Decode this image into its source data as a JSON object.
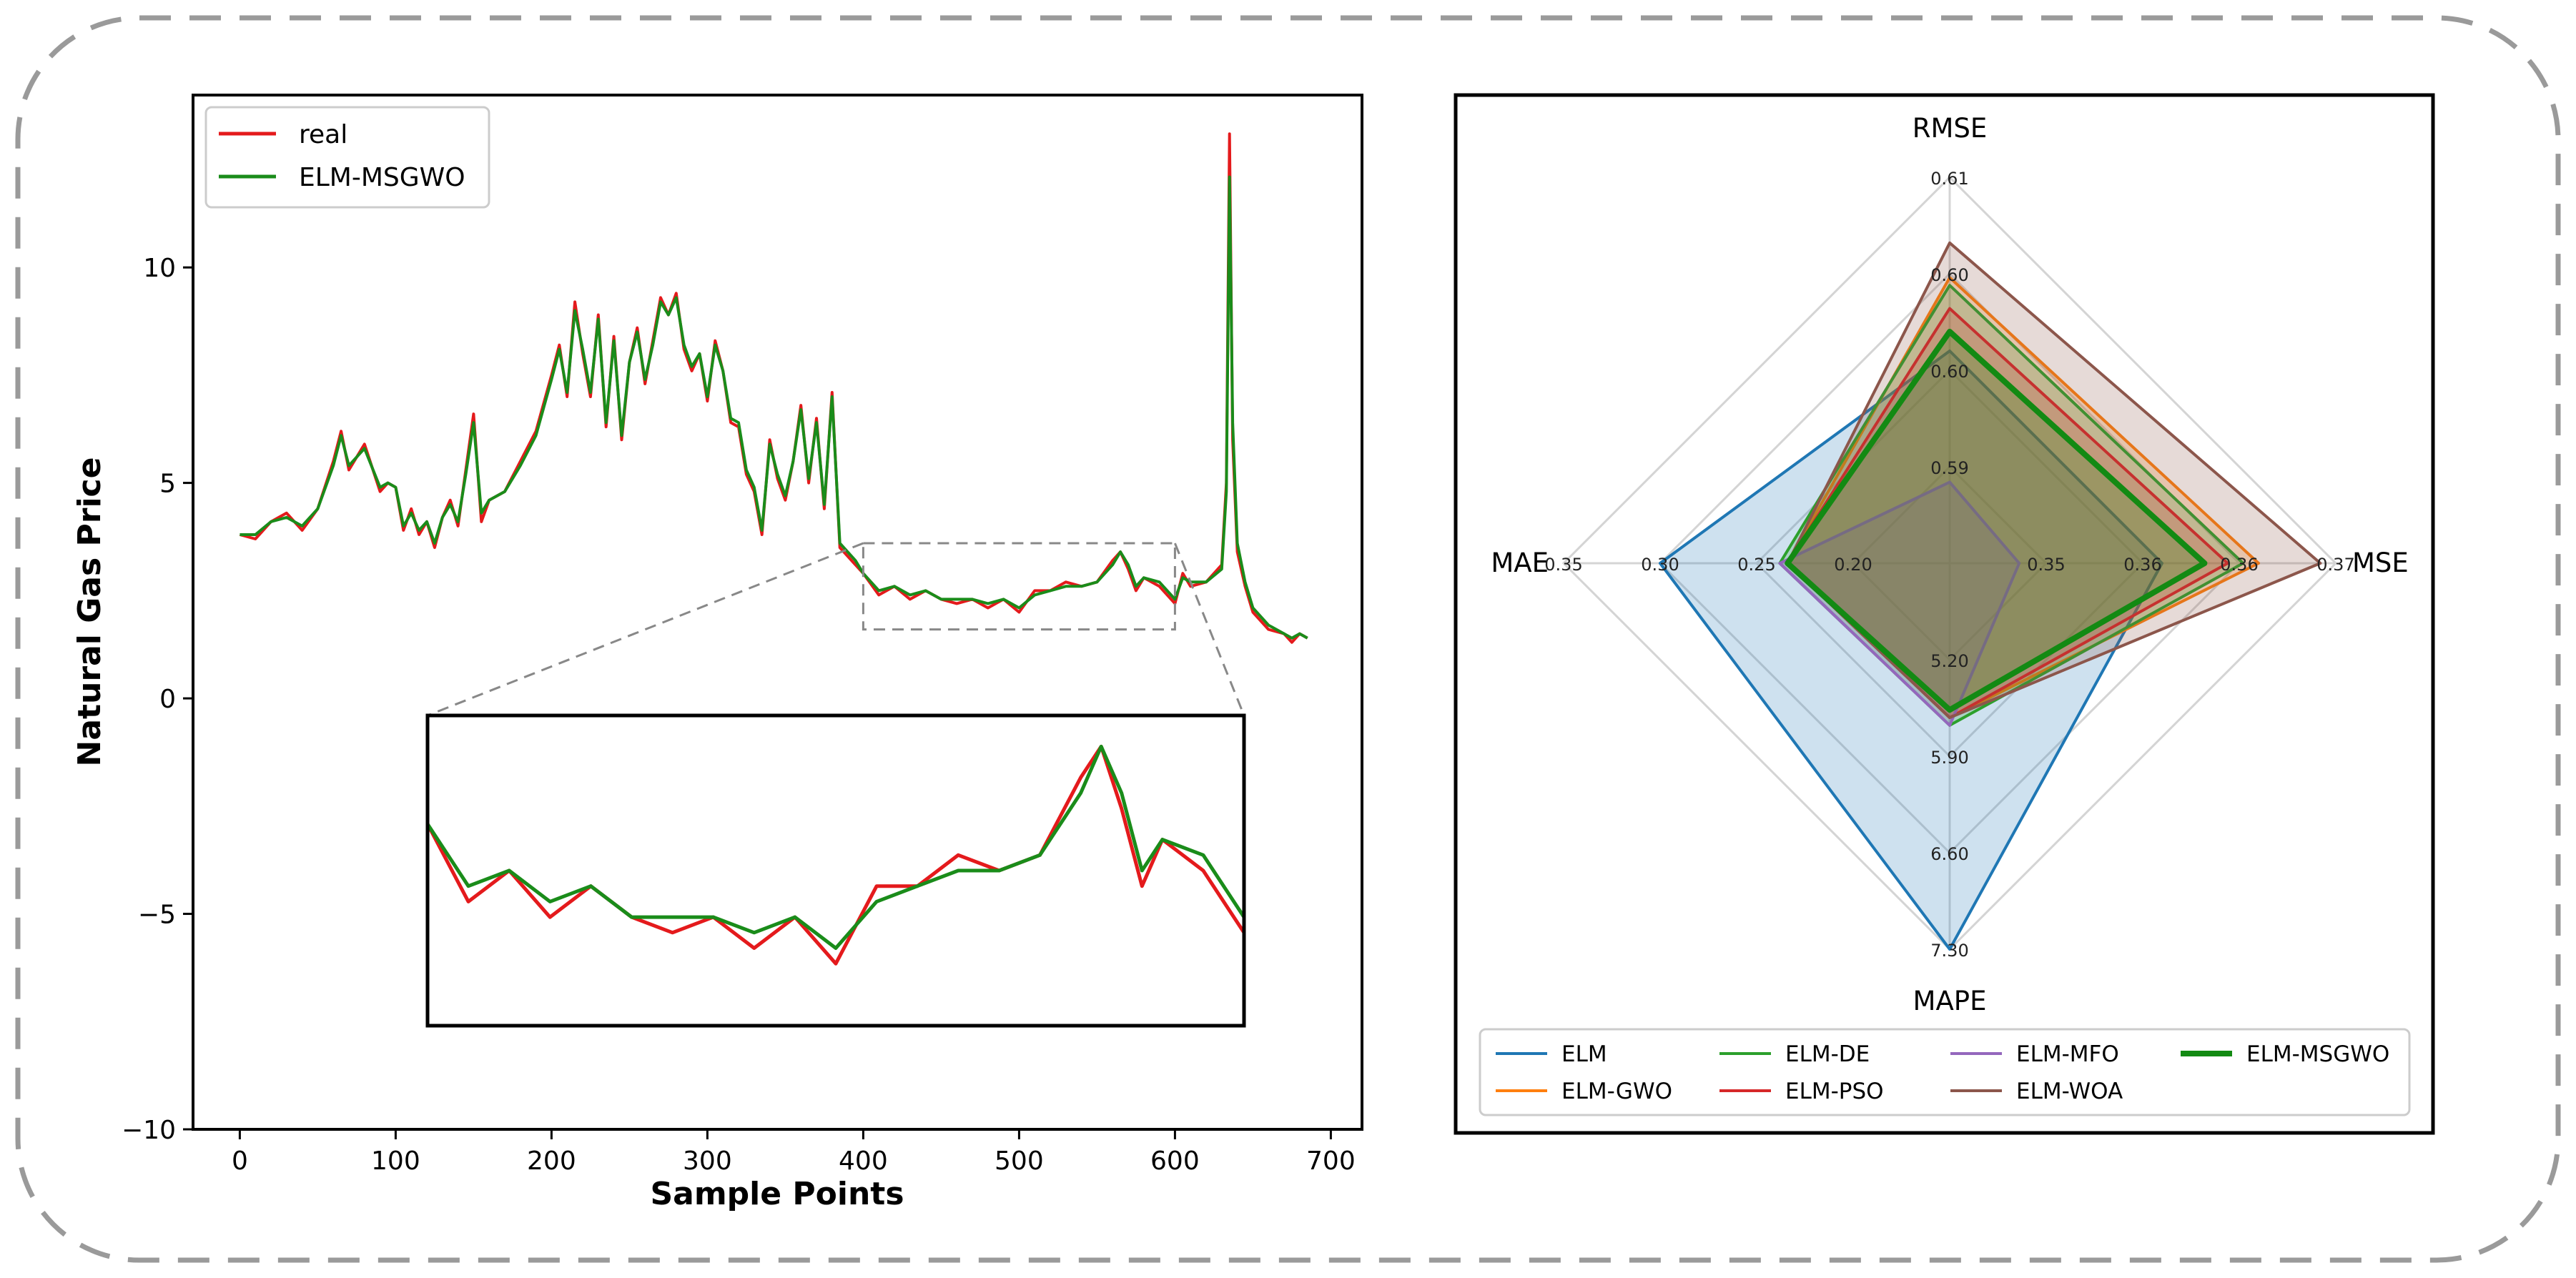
{
  "chart_data": [
    {
      "type": "line",
      "xlabel": "Sample Points",
      "ylabel": "Natural Gas Price",
      "xlim": [
        -30,
        720
      ],
      "ylim": [
        -10,
        14
      ],
      "x_ticks": [
        0,
        100,
        200,
        300,
        400,
        500,
        600,
        700
      ],
      "y_ticks": [
        -10,
        -5,
        0,
        5,
        10
      ],
      "legend_position": "upper-left",
      "series": [
        {
          "name": "real",
          "color": "#e41a1c",
          "x": [
            0,
            10,
            20,
            30,
            40,
            50,
            60,
            65,
            70,
            80,
            90,
            95,
            100,
            105,
            110,
            115,
            120,
            125,
            130,
            135,
            140,
            145,
            150,
            155,
            160,
            170,
            180,
            190,
            200,
            205,
            210,
            215,
            220,
            225,
            230,
            235,
            240,
            245,
            250,
            255,
            260,
            265,
            270,
            275,
            280,
            285,
            290,
            295,
            300,
            305,
            310,
            315,
            320,
            325,
            330,
            335,
            340,
            345,
            350,
            355,
            360,
            365,
            370,
            375,
            380,
            385,
            390,
            395,
            400,
            410,
            420,
            430,
            440,
            450,
            460,
            470,
            480,
            490,
            500,
            510,
            520,
            530,
            540,
            550,
            560,
            565,
            570,
            575,
            580,
            590,
            600,
            605,
            610,
            620,
            630,
            633,
            635,
            637,
            640,
            645,
            650,
            660,
            670,
            675,
            680,
            685
          ],
          "values": [
            3.8,
            3.7,
            4.1,
            4.3,
            3.9,
            4.4,
            5.5,
            6.2,
            5.3,
            5.9,
            4.8,
            5.0,
            4.9,
            3.9,
            4.4,
            3.8,
            4.1,
            3.5,
            4.2,
            4.6,
            4.0,
            5.3,
            6.6,
            4.1,
            4.6,
            4.8,
            5.5,
            6.2,
            7.5,
            8.2,
            7.0,
            9.2,
            8.0,
            7.0,
            8.9,
            6.3,
            8.4,
            6.0,
            7.8,
            8.6,
            7.3,
            8.3,
            9.3,
            8.9,
            9.4,
            8.1,
            7.6,
            8.0,
            6.9,
            8.3,
            7.6,
            6.4,
            6.3,
            5.2,
            4.8,
            3.8,
            6.0,
            5.1,
            4.6,
            5.5,
            6.8,
            5.0,
            6.5,
            4.4,
            7.1,
            3.5,
            3.3,
            3.1,
            2.9,
            2.4,
            2.6,
            2.3,
            2.5,
            2.3,
            2.2,
            2.3,
            2.1,
            2.3,
            2.0,
            2.5,
            2.5,
            2.7,
            2.6,
            2.7,
            3.2,
            3.4,
            3.0,
            2.5,
            2.8,
            2.6,
            2.2,
            2.9,
            2.6,
            2.7,
            3.1,
            5.0,
            13.1,
            6.0,
            3.4,
            2.6,
            2.0,
            1.6,
            1.5,
            1.3,
            1.5,
            1.4
          ]
        },
        {
          "name": "ELM-MSGWO",
          "color": "#1a8c1a",
          "x": [
            0,
            10,
            20,
            30,
            40,
            50,
            60,
            65,
            70,
            80,
            90,
            95,
            100,
            105,
            110,
            115,
            120,
            125,
            130,
            135,
            140,
            145,
            150,
            155,
            160,
            170,
            180,
            190,
            200,
            205,
            210,
            215,
            220,
            225,
            230,
            235,
            240,
            245,
            250,
            255,
            260,
            265,
            270,
            275,
            280,
            285,
            290,
            295,
            300,
            305,
            310,
            315,
            320,
            325,
            330,
            335,
            340,
            345,
            350,
            355,
            360,
            365,
            370,
            375,
            380,
            385,
            390,
            395,
            400,
            410,
            420,
            430,
            440,
            450,
            460,
            470,
            480,
            490,
            500,
            510,
            520,
            530,
            540,
            550,
            560,
            565,
            570,
            575,
            580,
            590,
            600,
            605,
            610,
            620,
            630,
            633,
            635,
            637,
            640,
            645,
            650,
            660,
            670,
            675,
            680,
            685
          ],
          "values": [
            3.8,
            3.8,
            4.1,
            4.2,
            4.0,
            4.4,
            5.4,
            6.1,
            5.4,
            5.8,
            4.9,
            5.0,
            4.9,
            4.0,
            4.3,
            3.9,
            4.1,
            3.6,
            4.2,
            4.5,
            4.1,
            5.2,
            6.4,
            4.3,
            4.6,
            4.8,
            5.4,
            6.1,
            7.4,
            8.1,
            7.1,
            9.0,
            8.1,
            7.1,
            8.8,
            6.4,
            8.3,
            6.1,
            7.8,
            8.5,
            7.4,
            8.2,
            9.2,
            8.9,
            9.3,
            8.2,
            7.7,
            8.0,
            7.0,
            8.2,
            7.6,
            6.5,
            6.4,
            5.3,
            4.9,
            3.9,
            5.9,
            5.2,
            4.7,
            5.5,
            6.7,
            5.1,
            6.4,
            4.5,
            7.0,
            3.6,
            3.4,
            3.2,
            2.9,
            2.5,
            2.6,
            2.4,
            2.5,
            2.3,
            2.3,
            2.3,
            2.2,
            2.3,
            2.1,
            2.4,
            2.5,
            2.6,
            2.6,
            2.7,
            3.1,
            3.4,
            3.1,
            2.6,
            2.8,
            2.7,
            2.3,
            2.8,
            2.7,
            2.7,
            3.0,
            4.8,
            12.1,
            6.4,
            3.6,
            2.7,
            2.1,
            1.7,
            1.5,
            1.4,
            1.5,
            1.4
          ]
        }
      ],
      "inset": {
        "zoom_x_range": [
          400,
          600
        ],
        "zoom_y_range": [
          1.6,
          3.6
        ],
        "y_range": [
          1.6,
          3.6
        ]
      }
    },
    {
      "type": "radar",
      "axes": [
        "RMSE",
        "MSE",
        "MAPE",
        "MAE"
      ],
      "axis_ticks": {
        "RMSE": [
          "0.59",
          "0.60",
          "0.60",
          "0.61"
        ],
        "MSE": [
          "0.35",
          "0.36",
          "0.36",
          "0.37"
        ],
        "MAPE": [
          "5.20",
          "5.90",
          "6.60",
          "7.30"
        ],
        "MAE": [
          "0.20",
          "0.25",
          "0.30",
          "0.35"
        ]
      },
      "legend_position": "bottom",
      "legend_columns": 4,
      "series": [
        {
          "name": "ELM",
          "color": "#1f77b4",
          "values": [
            0.55,
            0.55,
            1.0,
            0.75
          ],
          "line_width": 2
        },
        {
          "name": "ELM-GWO",
          "color": "#ff7f0e",
          "values": [
            0.74,
            0.8,
            0.4,
            0.42
          ],
          "line_width": 2
        },
        {
          "name": "ELM-DE",
          "color": "#2ca02c",
          "values": [
            0.72,
            0.76,
            0.42,
            0.44
          ],
          "line_width": 2
        },
        {
          "name": "ELM-PSO",
          "color": "#d62728",
          "values": [
            0.66,
            0.72,
            0.4,
            0.42
          ],
          "line_width": 2
        },
        {
          "name": "ELM-MFO",
          "color": "#9467bd",
          "values": [
            0.21,
            0.18,
            0.42,
            0.44
          ],
          "line_width": 2
        },
        {
          "name": "ELM-WOA",
          "color": "#8c564b",
          "values": [
            0.83,
            0.96,
            0.4,
            0.42
          ],
          "line_width": 2
        },
        {
          "name": "ELM-MSGWO",
          "color": "#138a13",
          "values": [
            0.6,
            0.66,
            0.38,
            0.42
          ],
          "line_width": 4
        }
      ]
    }
  ]
}
